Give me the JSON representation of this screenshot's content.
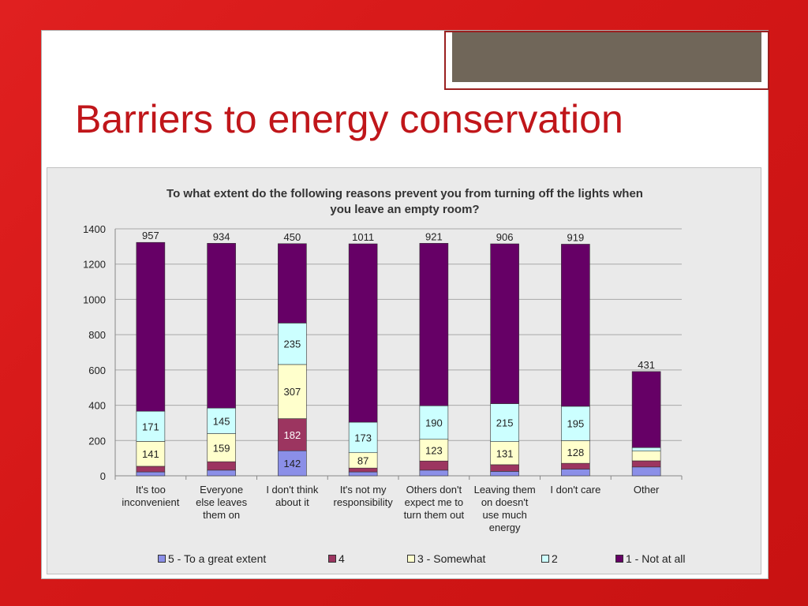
{
  "slide": {
    "title": "Barriers to energy conservation"
  },
  "chart_data": {
    "type": "bar",
    "stacked": true,
    "title": "To what extent do the following reasons prevent you from turning off the lights when you leave an empty room?",
    "ylim": [
      0,
      1400
    ],
    "yticks": [
      0,
      200,
      400,
      600,
      800,
      1000,
      1200,
      1400
    ],
    "grid": true,
    "legend_position": "bottom",
    "categories": [
      [
        "It's too",
        "inconvenient"
      ],
      [
        "Everyone",
        "else leaves",
        "them on"
      ],
      [
        "I don't think",
        "about it"
      ],
      [
        "It's not my",
        "responsibility"
      ],
      [
        "Others don't",
        "expect me to",
        "turn them out"
      ],
      [
        "Leaving them",
        "on doesn't",
        "use much",
        "energy"
      ],
      [
        "I don't care"
      ],
      [
        "Other"
      ]
    ],
    "series": [
      {
        "name": "5 - To a great extent",
        "color": "#8b8fe8",
        "values": [
          22,
          32,
          142,
          22,
          32,
          25,
          38,
          50
        ],
        "labels": [
          "",
          "",
          "142",
          "",
          "",
          "",
          "",
          ""
        ]
      },
      {
        "name": "4",
        "color": "#9c3560",
        "values": [
          32,
          48,
          182,
          22,
          52,
          38,
          33,
          35
        ],
        "labels": [
          "",
          "",
          "182",
          "",
          "",
          "",
          "",
          ""
        ]
      },
      {
        "name": "3 - Somewhat",
        "color": "#ffffcc",
        "values": [
          141,
          159,
          307,
          87,
          123,
          131,
          128,
          55
        ],
        "labels": [
          "141",
          "159",
          "307",
          "87",
          "123",
          "131",
          "128",
          ""
        ]
      },
      {
        "name": "2",
        "color": "#ccffff",
        "values": [
          171,
          145,
          235,
          173,
          190,
          215,
          195,
          20
        ],
        "labels": [
          "171",
          "145",
          "235",
          "173",
          "190",
          "215",
          "195",
          ""
        ]
      },
      {
        "name": "1 - Not at all",
        "color": "#660066",
        "values": [
          957,
          934,
          450,
          1011,
          921,
          906,
          919,
          431
        ],
        "labels": [
          "957",
          "934",
          "450",
          "1011",
          "921",
          "906",
          "919",
          "431"
        ]
      }
    ]
  }
}
